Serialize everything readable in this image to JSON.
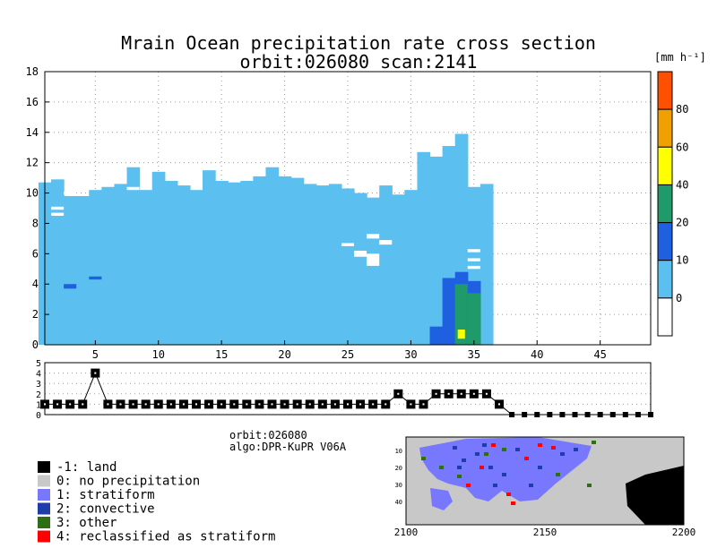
{
  "title": {
    "line1": "Mrain Ocean precipitation rate cross section",
    "line2": "orbit:026080    scan:2141"
  },
  "colorbar": {
    "unit": "[mm h⁻¹]",
    "ticks": [
      "0",
      "10",
      "20",
      "40",
      "60",
      "80"
    ],
    "colors": [
      "#ffffff",
      "#5bc0f0",
      "#1e60e0",
      "#1f9a6a",
      "#ffff00",
      "#f0a000",
      "#ff5000"
    ]
  },
  "main_axis": {
    "x_ticks": [
      "5",
      "10",
      "15",
      "20",
      "25",
      "30",
      "35",
      "40",
      "45"
    ],
    "y_ticks": [
      "0",
      "2",
      "4",
      "6",
      "8",
      "10",
      "12",
      "14",
      "16",
      "18"
    ]
  },
  "type_axis": {
    "y_ticks": [
      "0",
      "1",
      "2",
      "3",
      "4",
      "5"
    ]
  },
  "info": {
    "orbit": "orbit:026080",
    "algo": "algo:DPR-KuPR V06A"
  },
  "legend": [
    {
      "label": "-1: land",
      "color": "#000000"
    },
    {
      "label": "0: no precipitation",
      "color": "#c8c8c8"
    },
    {
      "label": "1: stratiform",
      "color": "#7878ff"
    },
    {
      "label": "2: convective",
      "color": "#1e3caa"
    },
    {
      "label": "3: other",
      "color": "#2e6e14"
    },
    {
      "label": "4: reclassified as stratiform",
      "color": "#ff0000"
    }
  ],
  "map": {
    "x_ticks": [
      "2100",
      "2150",
      "2200"
    ],
    "y_ticks": [
      "10",
      "20",
      "30",
      "40"
    ]
  },
  "chart_data": [
    {
      "type": "bar",
      "title": "Mrain Ocean precipitation rate cross section",
      "subtitle": "orbit:026080    scan:2141",
      "xlabel": "",
      "ylabel": "",
      "xlim": [
        1,
        49
      ],
      "ylim": [
        0,
        18
      ],
      "unit": "[mm h⁻¹]",
      "x": [
        1,
        2,
        3,
        4,
        5,
        6,
        7,
        8,
        9,
        10,
        11,
        12,
        13,
        14,
        15,
        16,
        17,
        18,
        19,
        20,
        21,
        22,
        23,
        24,
        25,
        26,
        27,
        28,
        29,
        30,
        31,
        32,
        33,
        34,
        35,
        36
      ],
      "top_height_km": [
        10.7,
        10.9,
        9.8,
        9.8,
        10.2,
        10.4,
        10.6,
        11.7,
        10.2,
        11.4,
        10.8,
        10.5,
        10.2,
        11.5,
        10.8,
        10.7,
        10.8,
        11.1,
        11.7,
        11.1,
        11.0,
        10.6,
        10.5,
        10.6,
        10.3,
        10.0,
        9.7,
        10.5,
        9.9,
        10.2,
        12.7,
        12.4,
        13.1,
        13.9,
        10.4,
        10.6
      ],
      "convective_columns": [
        {
          "x": 32,
          "top": 1.2,
          "rate_class": "10-20"
        },
        {
          "x": 33,
          "top": 4.4,
          "rate_class": "10-20"
        },
        {
          "x": 34,
          "top": 4.8,
          "rate_class": "20-40"
        },
        {
          "x": 35,
          "top": 4.2,
          "rate_class": "20-40"
        }
      ],
      "max_rate_cell": {
        "x": 34,
        "bottom": 0.4,
        "top": 1.0,
        "rate_class": "40-60"
      },
      "grid": true
    },
    {
      "type": "line",
      "ylim": [
        0,
        5
      ],
      "x": [
        1,
        2,
        3,
        4,
        5,
        6,
        7,
        8,
        9,
        10,
        11,
        12,
        13,
        14,
        15,
        16,
        17,
        18,
        19,
        20,
        21,
        22,
        23,
        24,
        25,
        26,
        27,
        28,
        29,
        30,
        31,
        32,
        33,
        34,
        35,
        36,
        37,
        38,
        39,
        40,
        41,
        42,
        43,
        44,
        45,
        46,
        47,
        48,
        49
      ],
      "precip_type": [
        1,
        1,
        1,
        1,
        4,
        1,
        1,
        1,
        1,
        1,
        1,
        1,
        1,
        1,
        1,
        1,
        1,
        1,
        1,
        1,
        1,
        1,
        1,
        1,
        1,
        1,
        1,
        1,
        2,
        1,
        1,
        2,
        2,
        2,
        2,
        2,
        1,
        0,
        0,
        0,
        0,
        0,
        0,
        0,
        0,
        0,
        0,
        0,
        0
      ],
      "grid": true
    }
  ]
}
